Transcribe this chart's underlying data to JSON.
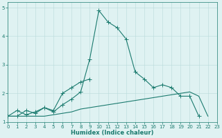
{
  "line1_x": [
    0,
    1,
    2,
    3,
    4,
    5,
    6,
    7,
    8,
    9,
    10,
    11,
    12,
    13,
    14,
    15,
    16,
    17,
    18,
    19,
    20,
    21
  ],
  "line1_y": [
    1.2,
    1.2,
    1.4,
    1.3,
    1.5,
    1.35,
    1.6,
    1.8,
    2.05,
    3.2,
    4.9,
    4.5,
    4.3,
    3.9,
    2.75,
    2.5,
    2.2,
    2.3,
    2.2,
    1.9,
    1.9,
    1.2
  ],
  "line2_x": [
    0,
    1,
    2,
    3,
    4,
    5,
    6,
    7,
    8,
    9
  ],
  "line2_y": [
    1.2,
    1.4,
    1.25,
    1.35,
    1.5,
    1.4,
    2.0,
    2.2,
    2.4,
    2.5
  ],
  "line3_x": [
    0,
    1,
    2,
    3,
    4,
    5,
    6,
    7,
    8,
    9,
    10,
    11,
    12,
    13,
    14,
    15,
    16,
    17,
    18,
    19,
    20,
    21,
    22
  ],
  "line3_y": [
    1.2,
    1.2,
    1.2,
    1.2,
    1.2,
    1.25,
    1.3,
    1.35,
    1.45,
    1.5,
    1.55,
    1.6,
    1.65,
    1.7,
    1.75,
    1.8,
    1.85,
    1.9,
    1.95,
    2.0,
    2.05,
    1.9,
    1.2
  ],
  "color": "#1a7a6e",
  "bg_color": "#dff2f2",
  "grid_color": "#b8dada",
  "xlabel": "Humidex (Indice chaleur)",
  "ylim": [
    1.0,
    5.2
  ],
  "xlim": [
    0,
    23
  ],
  "yticks": [
    1,
    2,
    3,
    4,
    5
  ],
  "xticks": [
    0,
    1,
    2,
    3,
    4,
    5,
    6,
    7,
    8,
    9,
    10,
    11,
    12,
    13,
    14,
    15,
    16,
    17,
    18,
    19,
    20,
    21,
    22,
    23
  ],
  "xlabel_fontsize": 6,
  "tick_fontsize": 5,
  "linewidth": 0.8,
  "markersize": 2.0
}
